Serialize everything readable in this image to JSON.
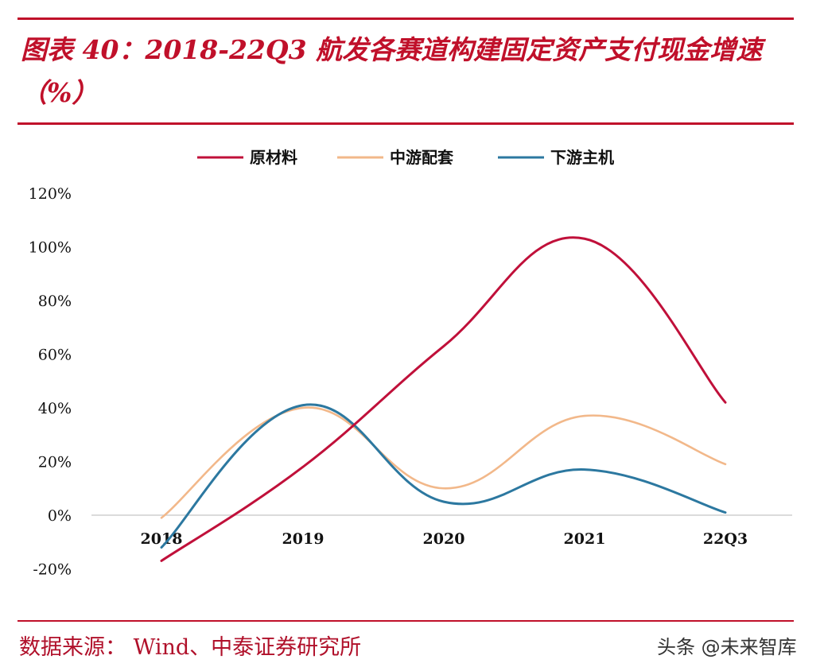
{
  "title": "图表 40：2018-22Q3 航发各赛道构建固定资产支付现金增速（%）",
  "source": "数据来源： Wind、中泰证券研究所",
  "watermark": "头条 @未来智库",
  "colors": {
    "brand": "#c0102a",
    "raw": "#c0103a",
    "mid": "#f2b88a",
    "host": "#2c78a0"
  },
  "chart_data": {
    "type": "line",
    "categories": [
      "2018",
      "2019",
      "2020",
      "2021",
      "22Q3"
    ],
    "series": [
      {
        "name": "原材料",
        "values": [
          -17,
          18,
          63,
          103,
          42
        ]
      },
      {
        "name": "中游配套",
        "values": [
          -1,
          40,
          10,
          37,
          19
        ]
      },
      {
        "name": "下游主机",
        "values": [
          -12,
          41,
          5,
          17,
          1
        ]
      }
    ],
    "ylim": [
      -20,
      120
    ],
    "yticks": [
      "-20%",
      "0%",
      "20%",
      "40%",
      "60%",
      "80%",
      "100%",
      "120%"
    ],
    "ytick_values": [
      -20,
      0,
      20,
      40,
      60,
      80,
      100,
      120
    ],
    "legend_position": "top-center",
    "grid": false,
    "xlabel": "",
    "ylabel": ""
  }
}
